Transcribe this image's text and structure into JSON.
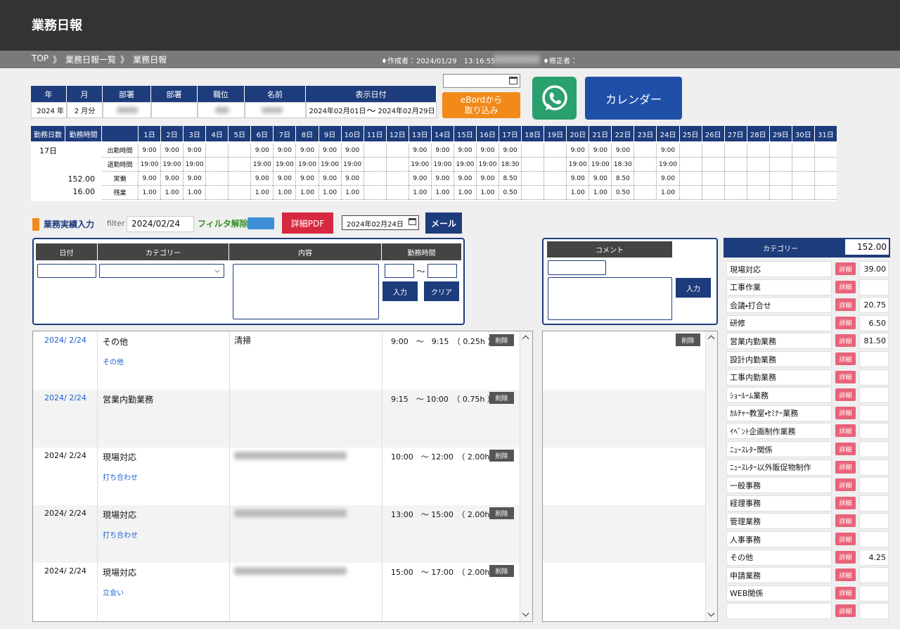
{
  "header": {
    "title": "業務日報"
  },
  "breadcrumb": {
    "items": [
      "TOP",
      "業務日報一覧",
      "業務日報"
    ],
    "separator": "》"
  },
  "meta": {
    "creator_label": "♦作成者：",
    "created_at": "2024/01/29　13:16:55",
    "modifier_label": "♦修正者："
  },
  "info": {
    "headers": [
      "年",
      "月",
      "部署",
      "部署",
      "職位",
      "名前",
      "表示日付"
    ],
    "year": "2024 年",
    "month": "2 月分",
    "date_from": "2024年02月01日",
    "date_sep": "〜",
    "date_to": "2024年02月29日"
  },
  "buttons": {
    "import": [
      "eBordから",
      "取り込み"
    ],
    "calendar": "カレンダー"
  },
  "attendance": {
    "headers": [
      "勤務日数",
      "勤務時間"
    ],
    "days": [
      "1日",
      "2日",
      "3日",
      "4日",
      "5日",
      "6日",
      "7日",
      "8日",
      "9日",
      "10日",
      "11日",
      "12日",
      "13日",
      "14日",
      "15日",
      "16日",
      "17日",
      "18日",
      "19日",
      "20日",
      "21日",
      "22日",
      "23日",
      "24日",
      "25日",
      "26日",
      "27日",
      "28日",
      "29日",
      "30日",
      "31日"
    ],
    "work_days": "17日",
    "total_hours": "152.00",
    "overtime_total": "16.00",
    "rows": [
      {
        "label": "出勤時間",
        "values": [
          "9:00",
          "9:00",
          "9:00",
          null,
          null,
          "9:00",
          "9:00",
          "9:00",
          "9:00",
          "9:00",
          null,
          null,
          "9:00",
          "9:00",
          "9:00",
          "9:00",
          "9:00",
          null,
          null,
          "9:00",
          "9:00",
          "9:00",
          null,
          "9:00",
          null,
          null,
          null,
          null,
          null,
          null,
          null
        ]
      },
      {
        "label": "退勤時間",
        "values": [
          "19:00",
          "19:00",
          "19:00",
          null,
          null,
          "19:00",
          "19:00",
          "19:00",
          "19:00",
          "19:00",
          null,
          null,
          "19:00",
          "19:00",
          "19:00",
          "19:00",
          "18:30",
          null,
          null,
          "19:00",
          "19:00",
          "18:30",
          null,
          "19:00",
          null,
          null,
          null,
          null,
          null,
          null,
          null
        ]
      },
      {
        "label": "実働",
        "values": [
          "9.00",
          "9.00",
          "9.00",
          null,
          null,
          "9.00",
          "9.00",
          "9.00",
          "9.00",
          "9.00",
          null,
          null,
          "9.00",
          "9.00",
          "9.00",
          "9.00",
          "8.50",
          null,
          null,
          "9.00",
          "9.00",
          "8.50",
          null,
          "9.00",
          null,
          null,
          null,
          null,
          null,
          null,
          null
        ]
      },
      {
        "label": "残業",
        "values": [
          "1.00",
          "1.00",
          "1.00",
          null,
          null,
          "1.00",
          "1.00",
          "1.00",
          "1.00",
          "1.00",
          null,
          null,
          "1.00",
          "1.00",
          "1.00",
          "1.00",
          "0.50",
          null,
          null,
          "1.00",
          "1.00",
          "0.50",
          null,
          "1.00",
          null,
          null,
          null,
          null,
          null,
          null,
          null
        ]
      }
    ]
  },
  "entry": {
    "title": "業務実績入力",
    "filter_label": "filter",
    "filter_value": "2024/02/24",
    "filter_clear": "フィルタ解除",
    "pdf": "詳細PDF",
    "date": "2024年02月24日",
    "mail": "メール"
  },
  "form": {
    "headers": [
      "日付",
      "カテゴリー",
      "内容",
      "勤務時間"
    ],
    "time_sep": "〜",
    "submit": "入力",
    "clear": "クリア"
  },
  "comment": {
    "header": "コメント",
    "submit": "入力",
    "delete": "削除"
  },
  "records": {
    "delete": "削除",
    "rows": [
      {
        "date": "2024/ 2/24",
        "date_color": "#1a5fd0",
        "category": "その他",
        "subcategory": "その他",
        "content": "清掃",
        "time": "9:00　～　9:15　（ 0.25h ）"
      },
      {
        "date": "2024/ 2/24",
        "date_color": "#1a5fd0",
        "category": "営業内勤業務",
        "subcategory": null,
        "content": null,
        "time": "9:15　～ 10:00　（ 0.75h ）"
      },
      {
        "date": "2024/ 2/24",
        "date_color": "#111111",
        "category": "現場対応",
        "subcategory": "打ち合わせ",
        "content": null,
        "time": "10:00　～ 12:00　（ 2.00h ）"
      },
      {
        "date": "2024/ 2/24",
        "date_color": "#111111",
        "category": "現場対応",
        "subcategory": "打ち合わせ",
        "content": null,
        "time": "13:00　～ 15:00　（ 2.00h ）"
      },
      {
        "date": "2024/ 2/24",
        "date_color": "#111111",
        "category": "現場対応",
        "subcategory": "立会い",
        "content": null,
        "time": "15:00　～ 17:00　（ 2.00h ）"
      }
    ]
  },
  "categories": {
    "header": "カテゴリー",
    "total": "152.00",
    "detail_label": "詳細",
    "rows": [
      {
        "name": "現場対応",
        "hours": "39.00"
      },
      {
        "name": "工事作業",
        "hours": null
      },
      {
        "name": "会議・打合せ",
        "hours": "20.75"
      },
      {
        "name": "研修",
        "hours": "6.50"
      },
      {
        "name": "営業内勤業務",
        "hours": "81.50"
      },
      {
        "name": "設計内勤業務",
        "hours": null
      },
      {
        "name": "工事内勤業務",
        "hours": null
      },
      {
        "name": "ｼｮｰﾙｰﾑ業務",
        "hours": null
      },
      {
        "name": "ｶﾙﾁｬｰ教室・ｾﾐﾅｰ業務",
        "hours": null
      },
      {
        "name": "ｲﾍﾞﾝﾄ企画制作業務",
        "hours": null
      },
      {
        "name": "ﾆｭｰｽﾚﾀｰ関係",
        "hours": null
      },
      {
        "name": "ﾆｭｰｽﾚﾀｰ以外販促物制作",
        "hours": null
      },
      {
        "name": "一般事務",
        "hours": null
      },
      {
        "name": "経理事務",
        "hours": null
      },
      {
        "name": "管理業務",
        "hours": null
      },
      {
        "name": "人事事務",
        "hours": null
      },
      {
        "name": "その他",
        "hours": "4.25"
      },
      {
        "name": "申請業務",
        "hours": null
      },
      {
        "name": "WEB関係",
        "hours": null
      },
      {
        "name": null,
        "hours": null
      }
    ]
  }
}
